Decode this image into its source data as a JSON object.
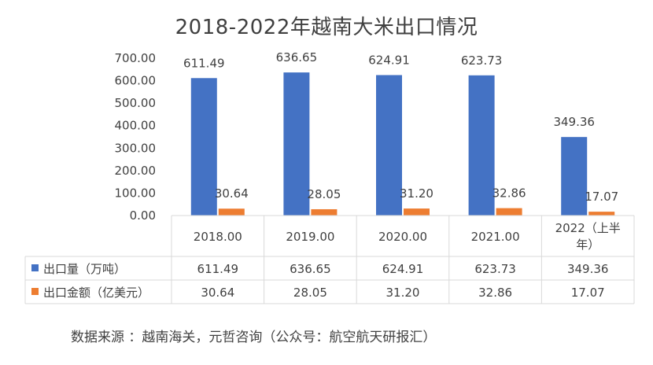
{
  "title": "2018-2022年越南大米出口情况",
  "source": "数据来源 ：越南海关，元哲咨询（公众号：航空航天研报汇）",
  "chart_data": {
    "type": "bar",
    "title": "2018-2022年越南大米出口情况",
    "categories": [
      "2018.00",
      "2019.00",
      "2020.00",
      "2021.00",
      "2022（上半年）"
    ],
    "category_lines": [
      [
        "2018.00"
      ],
      [
        "2019.00"
      ],
      [
        "2020.00"
      ],
      [
        "2021.00"
      ],
      [
        "2022（上半",
        "年）"
      ]
    ],
    "series": [
      {
        "name": "出口量（万吨）",
        "values": [
          611.49,
          636.65,
          624.91,
          623.73,
          349.36
        ],
        "labels": [
          "611.49",
          "636.65",
          "624.91",
          "623.73",
          "349.36"
        ],
        "color": "#4472C4"
      },
      {
        "name": "出口金额（亿美元）",
        "values": [
          30.64,
          28.05,
          31.2,
          32.86,
          17.07
        ],
        "labels": [
          "30.64",
          "28.05",
          "31.20",
          "32.86",
          "17.07"
        ],
        "color": "#ED7D31"
      }
    ],
    "ylim": [
      0,
      700
    ],
    "yticks": [
      "0.00",
      "100.00",
      "200.00",
      "300.00",
      "400.00",
      "500.00",
      "600.00",
      "700.00"
    ],
    "ytick_values": [
      0,
      100,
      200,
      300,
      400,
      500,
      600,
      700
    ],
    "grid": false,
    "legend": "data-table"
  }
}
